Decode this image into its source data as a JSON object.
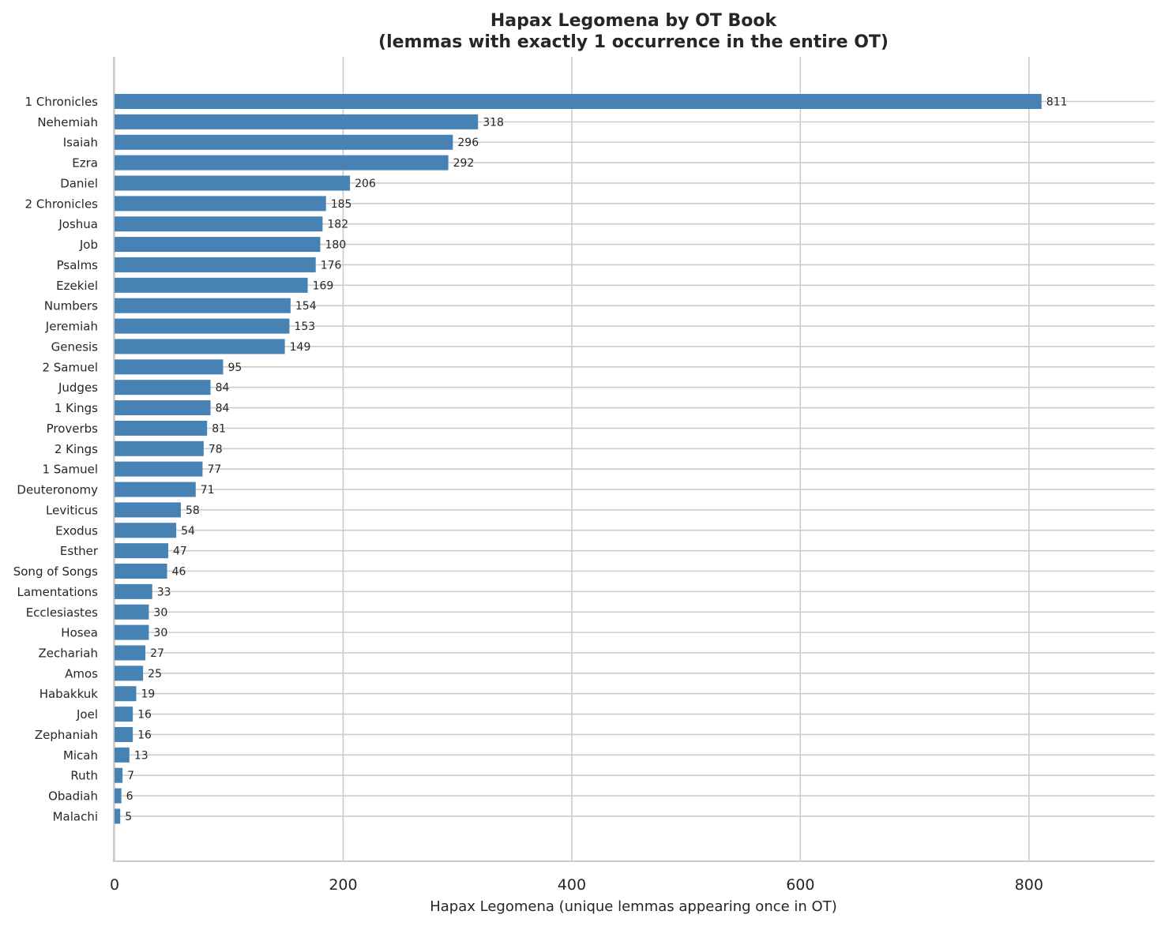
{
  "chart_data": {
    "type": "bar",
    "orientation": "horizontal",
    "title_line1": "Hapax Legomena by OT Book",
    "title_line2": "(lemmas with exactly 1 occurrence in the entire OT)",
    "xlabel": "Hapax Legomena (unique lemmas appearing once in OT)",
    "ylabel": "",
    "xlim": [
      0,
      910
    ],
    "xticks": [
      "0",
      "200",
      "400",
      "600",
      "800"
    ],
    "grid": true,
    "bar_color": "#4682B4",
    "categories": [
      "1 Chronicles",
      "Nehemiah",
      "Isaiah",
      "Ezra",
      "Daniel",
      "2 Chronicles",
      "Joshua",
      "Job",
      "Psalms",
      "Ezekiel",
      "Numbers",
      "Jeremiah",
      "Genesis",
      "2 Samuel",
      "Judges",
      "1 Kings",
      "Proverbs",
      "2 Kings",
      "1 Samuel",
      "Deuteronomy",
      "Leviticus",
      "Exodus",
      "Esther",
      "Song of Songs",
      "Lamentations",
      "Ecclesiastes",
      "Hosea",
      "Zechariah",
      "Amos",
      "Habakkuk",
      "Joel",
      "Zephaniah",
      "Micah",
      "Ruth",
      "Obadiah",
      "Malachi"
    ],
    "values": [
      811,
      318,
      296,
      292,
      206,
      185,
      182,
      180,
      176,
      169,
      154,
      153,
      149,
      95,
      84,
      84,
      81,
      78,
      77,
      71,
      58,
      54,
      47,
      46,
      33,
      30,
      30,
      27,
      25,
      19,
      16,
      16,
      13,
      7,
      6,
      5
    ]
  }
}
